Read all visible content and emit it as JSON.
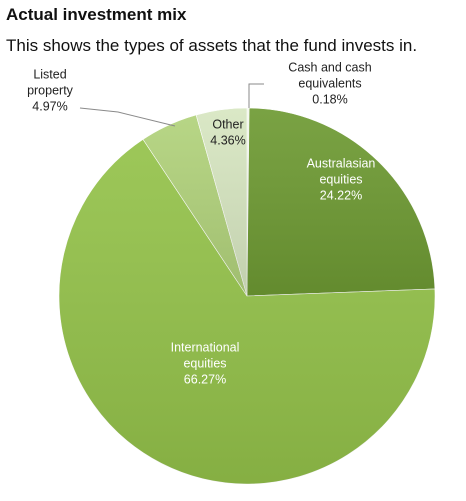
{
  "title": "Actual investment mix",
  "subtitle": "This shows the types of assets that the fund invests in.",
  "colors": {
    "australasian": "#6e9a33",
    "international": "#94c24a",
    "listed": "#b1d27b",
    "other": "#d7e6c1",
    "cash": "#eef4e5"
  },
  "chart_data": {
    "type": "pie",
    "title": "",
    "slices": [
      {
        "key": "cash",
        "label_lines": [
          "Cash and cash",
          "equivalents"
        ],
        "percent_label": "0.18%",
        "value": 0.18
      },
      {
        "key": "australasian",
        "label_lines": [
          "Australasian",
          "equities"
        ],
        "percent_label": "24.22%",
        "value": 24.22
      },
      {
        "key": "international",
        "label_lines": [
          "International",
          "equities"
        ],
        "percent_label": "66.27%",
        "value": 66.27
      },
      {
        "key": "listed",
        "label_lines": [
          "Listed",
          "property"
        ],
        "percent_label": "4.97%",
        "value": 4.97
      },
      {
        "key": "other",
        "label_lines": [
          "Other"
        ],
        "percent_label": "4.36%",
        "value": 4.36
      }
    ]
  }
}
